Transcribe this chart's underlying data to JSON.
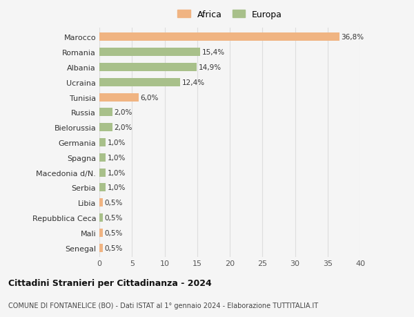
{
  "categories": [
    "Marocco",
    "Romania",
    "Albania",
    "Ucraina",
    "Tunisia",
    "Russia",
    "Bielorussia",
    "Germania",
    "Spagna",
    "Macedonia d/N.",
    "Serbia",
    "Libia",
    "Repubblica Ceca",
    "Mali",
    "Senegal"
  ],
  "values": [
    36.8,
    15.4,
    14.9,
    12.4,
    6.0,
    2.0,
    2.0,
    1.0,
    1.0,
    1.0,
    1.0,
    0.5,
    0.5,
    0.5,
    0.5
  ],
  "labels": [
    "36,8%",
    "15,4%",
    "14,9%",
    "12,4%",
    "6,0%",
    "2,0%",
    "2,0%",
    "1,0%",
    "1,0%",
    "1,0%",
    "1,0%",
    "0,5%",
    "0,5%",
    "0,5%",
    "0,5%"
  ],
  "continent": [
    "Africa",
    "Europa",
    "Europa",
    "Europa",
    "Africa",
    "Europa",
    "Europa",
    "Europa",
    "Europa",
    "Europa",
    "Europa",
    "Africa",
    "Europa",
    "Africa",
    "Africa"
  ],
  "color_africa": "#F0B482",
  "color_europa": "#A8C08A",
  "background_color": "#f5f5f5",
  "title1": "Cittadini Stranieri per Cittadinanza - 2024",
  "title2": "COMUNE DI FONTANELICE (BO) - Dati ISTAT al 1° gennaio 2024 - Elaborazione TUTTITALIA.IT",
  "xlim": [
    0,
    40
  ],
  "xticks": [
    0,
    5,
    10,
    15,
    20,
    25,
    30,
    35,
    40
  ],
  "legend_labels": [
    "Africa",
    "Europa"
  ],
  "grid_color": "#dddddd"
}
